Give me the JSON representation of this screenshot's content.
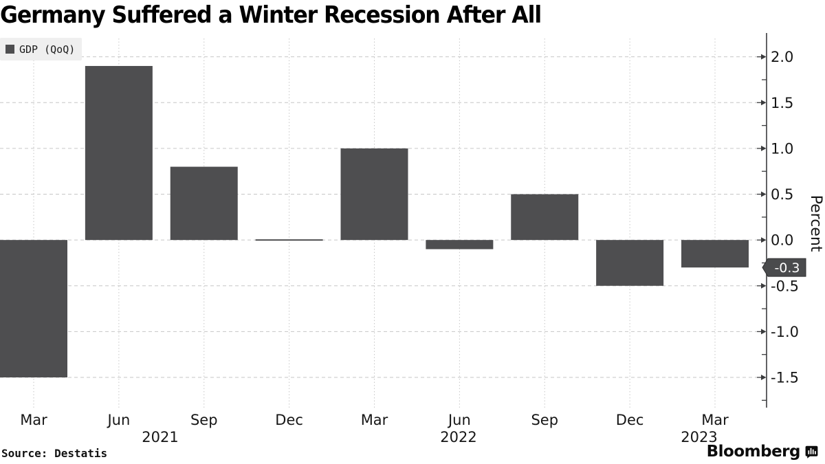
{
  "chart_data": {
    "type": "bar",
    "title": "Germany Suffered a Winter Recession After All",
    "categories": [
      "Mar 2021",
      "Jun 2021",
      "Sep 2021",
      "Dec 2021",
      "Mar 2022",
      "Jun 2022",
      "Sep 2022",
      "Dec 2022",
      "Mar 2023"
    ],
    "x_tick_labels": [
      "Mar",
      "Jun",
      "Sep",
      "Dec",
      "Mar",
      "Jun",
      "Sep",
      "Dec",
      "Mar"
    ],
    "year_labels": [
      "2021",
      "2022",
      "2023"
    ],
    "series": [
      {
        "name": "GDP (QoQ)",
        "values": [
          -1.5,
          1.9,
          0.8,
          0.0,
          1.0,
          -0.1,
          0.5,
          -0.5,
          -0.3
        ]
      }
    ],
    "ylabel": "Percent",
    "ylim": [
      -1.83,
      2.2
    ],
    "yticks_major": [
      2.0,
      1.5,
      1.0,
      0.5,
      0.0,
      -0.5,
      -1.0,
      -1.5
    ],
    "ytick_labels": [
      "2.0",
      "1.5",
      "1.0",
      "0.5",
      "0.0",
      "-0.5",
      "-1.0",
      "-1.5"
    ],
    "yticks_minor": [
      1.75,
      1.25,
      0.75,
      0.25,
      -0.25,
      -0.75,
      -1.25,
      -1.75
    ],
    "grid": true,
    "legend_position": "top-left",
    "current_value": -0.3,
    "current_value_label": "-0.3"
  },
  "legend": {
    "label": "GDP (QoQ)",
    "swatch_color": "#4e4e50"
  },
  "source_note": "Source: Destatis",
  "branding": {
    "wordmark": "Bloomberg",
    "icon": "bloomberg-chart-bubble-icon"
  },
  "colors": {
    "background": "#ffffff",
    "bar": "#4e4e50",
    "grid": "#c6c6c6",
    "axis": "#3a3b3d",
    "tick_text": "#161616",
    "badge_bg": "#4a4b4d",
    "badge_text": "#ffffff",
    "legend_bg": "#efefef",
    "title_text": "#000000"
  }
}
